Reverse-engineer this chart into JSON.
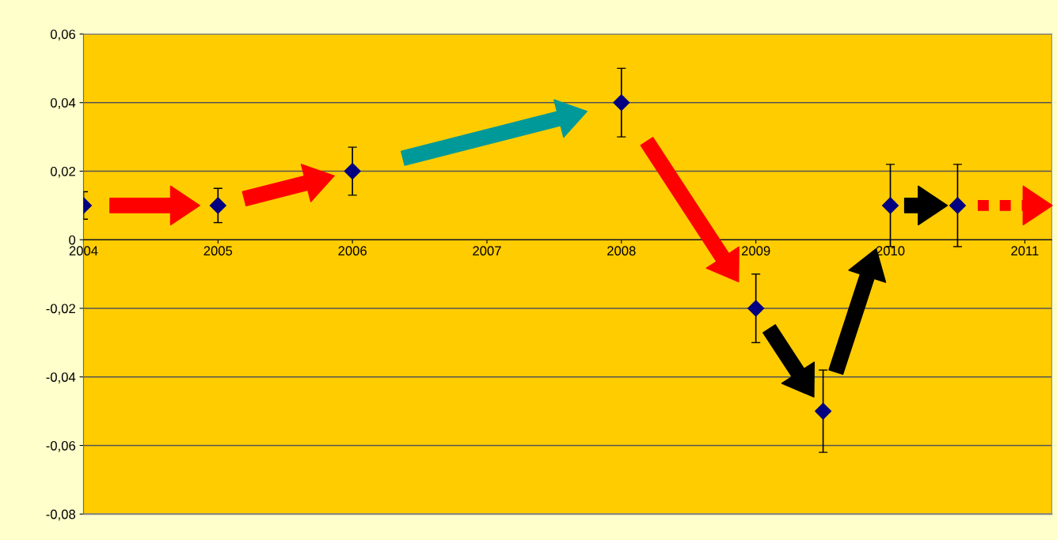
{
  "chart_data": {
    "type": "scatter",
    "x": [
      2004,
      2005,
      2006,
      2008,
      2009,
      2009.5,
      2010,
      2010.5
    ],
    "series": [
      {
        "color": "#000080",
        "values": [
          0.01,
          0.01,
          0.02,
          0.04,
          -0.02,
          -0.05,
          0.01,
          0.01
        ],
        "errors": [
          0.004,
          0.005,
          0.007,
          0.01,
          0.01,
          0.012,
          0.012,
          0.012
        ]
      }
    ],
    "marker": "diamond",
    "xlim": [
      2004,
      2011.2
    ],
    "xticks": [
      2004,
      2005,
      2006,
      2007,
      2008,
      2009,
      2010,
      2011
    ],
    "ylim": [
      -0.08,
      0.06
    ],
    "yticks": [
      {
        "value": -0.08,
        "label": "-0,08"
      },
      {
        "value": -0.06,
        "label": "-0,06"
      },
      {
        "value": -0.04,
        "label": "-0,04"
      },
      {
        "value": -0.02,
        "label": "-0,02"
      },
      0,
      {
        "value": 0.02,
        "label": "0,02"
      },
      {
        "value": 0.04,
        "label": "0,04"
      },
      {
        "value": 0.06,
        "label": "0,06"
      }
    ],
    "grid": "y"
  }
}
